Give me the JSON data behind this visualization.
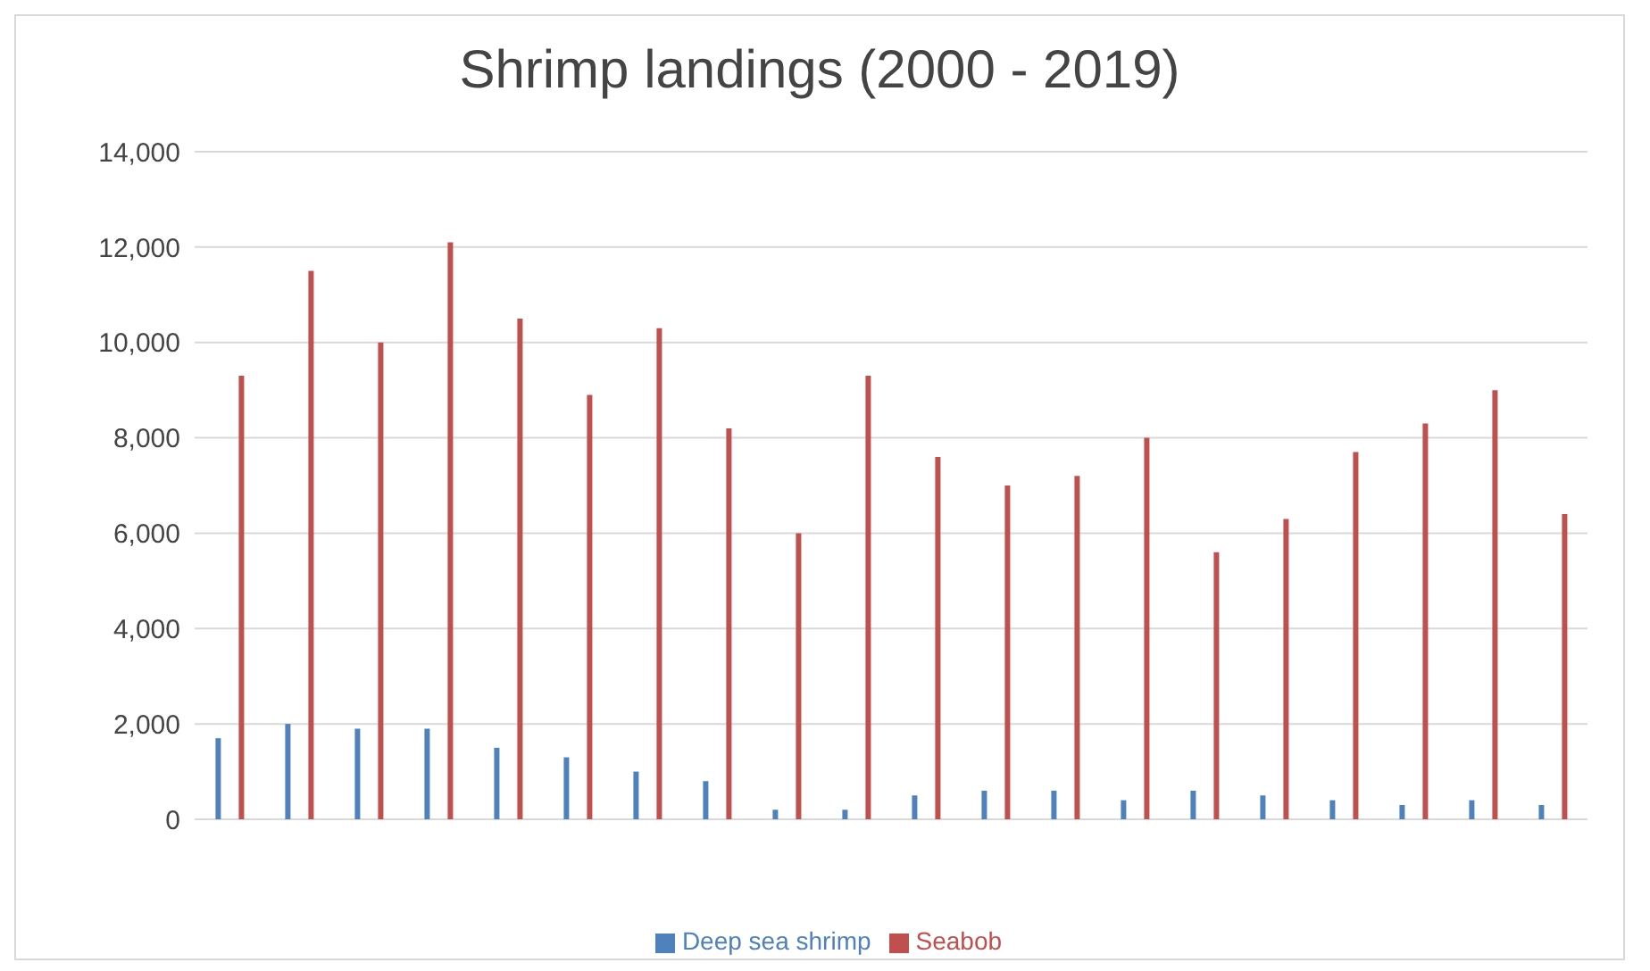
{
  "chart_data": {
    "type": "bar",
    "title": "Shrimp landings (2000 - 2019)",
    "categories": [
      null,
      null,
      null,
      null,
      null,
      null,
      null,
      null,
      null,
      null,
      null,
      null,
      null,
      null,
      null,
      null,
      null,
      null,
      null,
      null
    ],
    "series": [
      {
        "name": "Deep sea shrimp",
        "color": "#4f81bd",
        "values": [
          1700,
          2000,
          1900,
          1900,
          1500,
          1300,
          1000,
          800,
          200,
          200,
          500,
          600,
          600,
          400,
          600,
          500,
          400,
          300,
          400,
          300
        ]
      },
      {
        "name": "Seabob",
        "color": "#c0504d",
        "values": [
          9300,
          11500,
          10000,
          12100,
          10500,
          8900,
          10300,
          8200,
          6000,
          9300,
          7600,
          7000,
          7200,
          8000,
          5600,
          6300,
          7700,
          8300,
          9000,
          6400
        ]
      }
    ],
    "ylim": [
      0,
      14000
    ],
    "yticks": [
      {
        "value": 0,
        "label": "0"
      },
      {
        "value": 2000,
        "label": "2,000"
      },
      {
        "value": 4000,
        "label": "4,000"
      },
      {
        "value": 6000,
        "label": "6,000"
      },
      {
        "value": 8000,
        "label": "8,000"
      },
      {
        "value": 10000,
        "label": "10,000"
      },
      {
        "value": 12000,
        "label": "12,000"
      },
      {
        "value": 14000,
        "label": "14,000"
      }
    ],
    "grid": "y",
    "legend": "bottom"
  }
}
